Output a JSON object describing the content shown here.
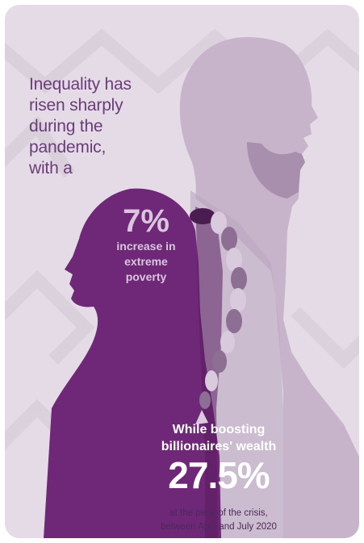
{
  "headline": {
    "lines": [
      "Inequality has",
      "risen sharply",
      "during the",
      "pandemic,",
      "with a"
    ]
  },
  "poverty_stat": {
    "value": "7%",
    "label_lines": [
      "increase in",
      "extreme",
      "poverty"
    ]
  },
  "wealth_stat": {
    "lead_lines": [
      "While boosting",
      "billionaires' wealth"
    ],
    "value": "27.5%",
    "footnote_lines": [
      "at the peak of the crisis,",
      "between April and July 2020"
    ]
  },
  "colors": {
    "background": "#e4dbe6",
    "man_silhouette": "#c7b4cb",
    "woman_silhouette": "#6f2777",
    "headline_text": "#6a3d7a",
    "braid_dark": "#4a1c50",
    "braid_mid": "#8c6f93",
    "braid_light": "#d9cadd"
  }
}
